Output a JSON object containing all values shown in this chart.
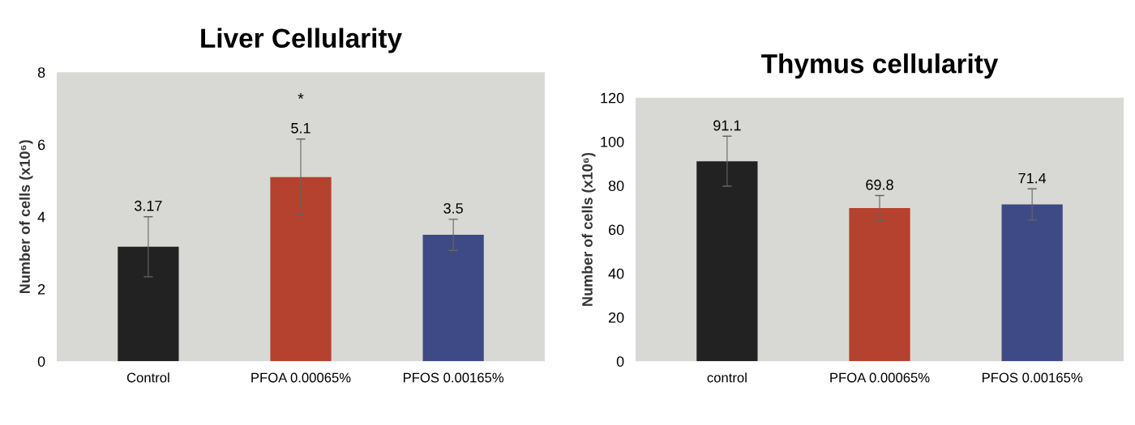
{
  "chart_data": [
    {
      "type": "bar",
      "title": "Liver Cellularity",
      "ylabel": "Number of cells (x10⁶)",
      "categories": [
        "Control",
        "PFOA 0.00065%",
        "PFOS 0.00165%"
      ],
      "values": [
        3.17,
        5.1,
        3.5
      ],
      "errors": [
        0.83,
        1.05,
        0.43
      ],
      "colors": [
        "#222222",
        "#b5412f",
        "#3e4a86"
      ],
      "ylim": [
        0,
        8
      ],
      "yticks": [
        0,
        2,
        4,
        6,
        8
      ],
      "data_labels": true,
      "grid": false,
      "legend": false,
      "annotations": [
        "*"
      ]
    },
    {
      "type": "bar",
      "title": "Thymus cellularity",
      "ylabel": "Number of cells (x10⁶)",
      "categories": [
        "control",
        "PFOA 0.00065%",
        "PFOS 0.00165%"
      ],
      "values": [
        91.1,
        69.8,
        71.4
      ],
      "errors": [
        11.4,
        5.7,
        7.1
      ],
      "colors": [
        "#222222",
        "#b5412f",
        "#3e4a86"
      ],
      "ylim": [
        0,
        120
      ],
      "yticks": [
        0,
        20,
        40,
        60,
        80,
        100,
        120
      ],
      "data_labels": true,
      "grid": false,
      "legend": false
    }
  ]
}
